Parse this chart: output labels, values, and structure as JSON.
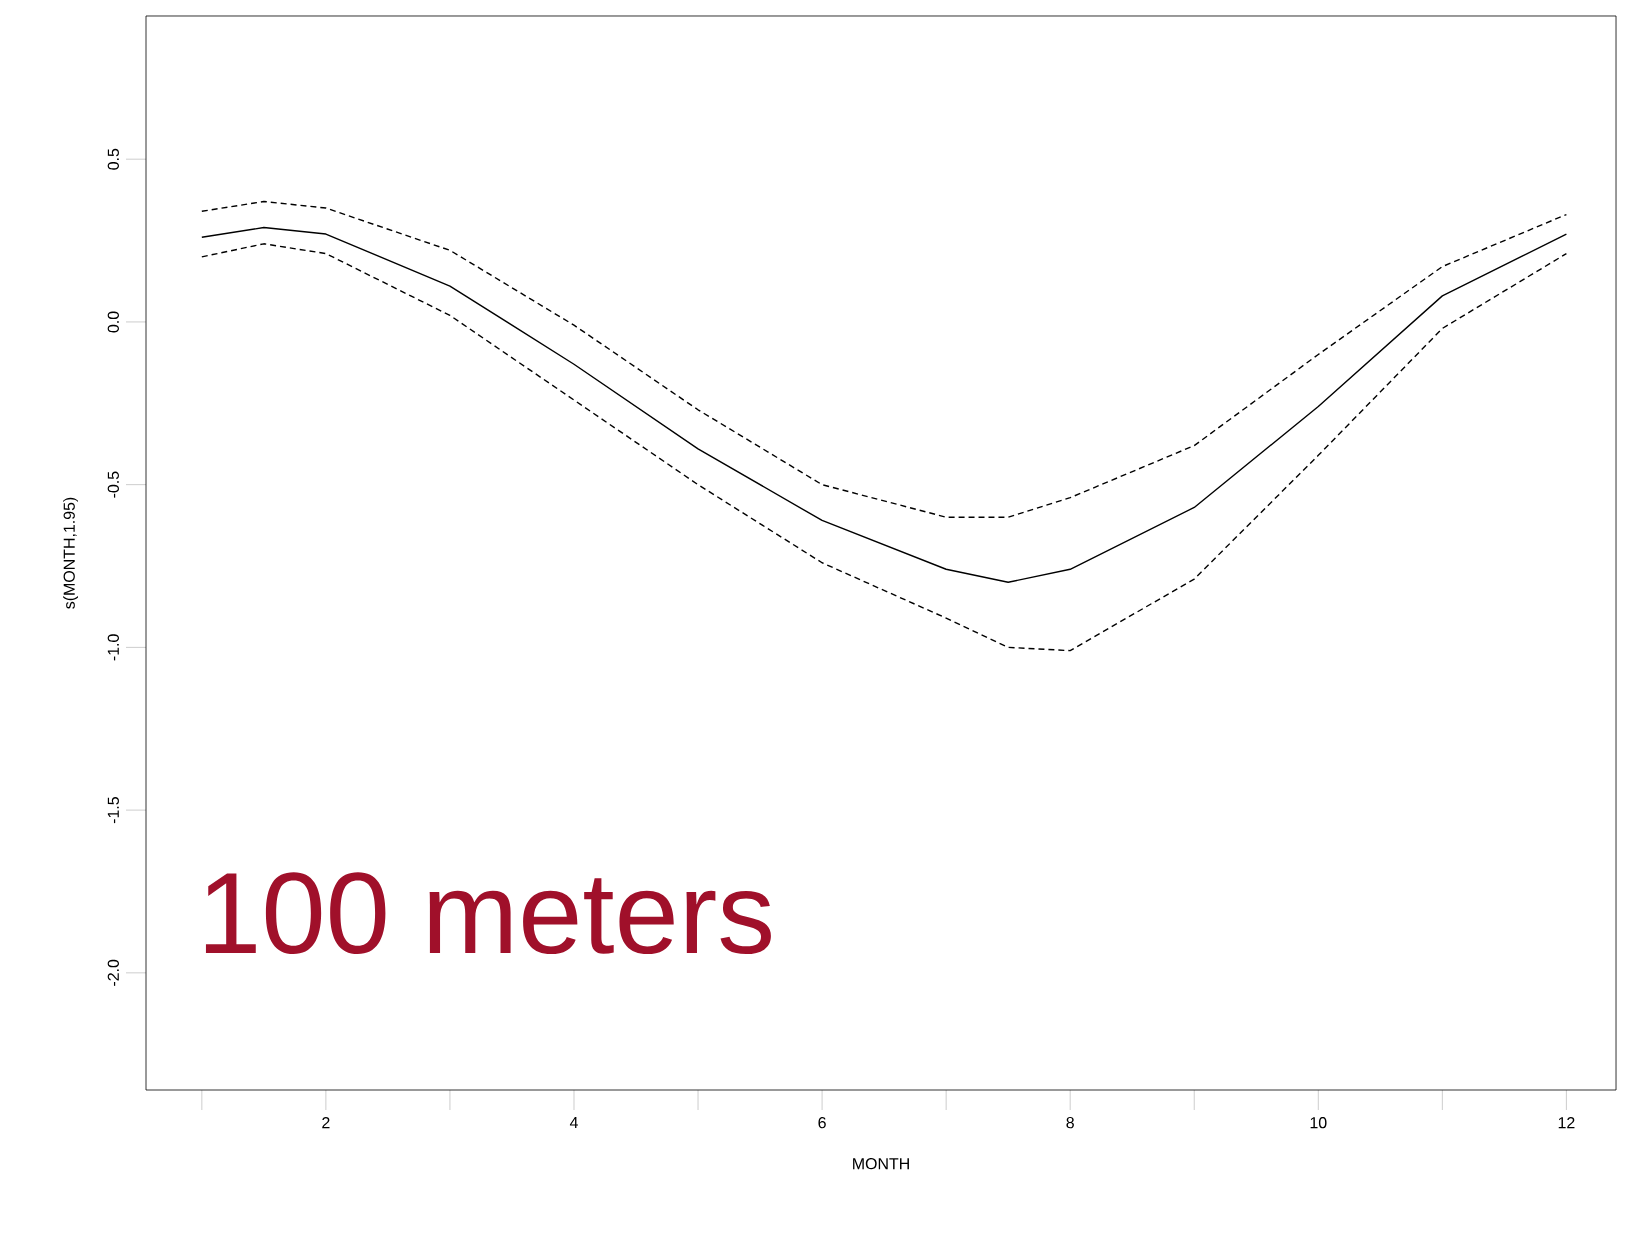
{
  "chart_data": {
    "type": "line",
    "xlabel": "MONTH",
    "ylabel": "s(MONTH,1.95)",
    "x": [
      1,
      1.5,
      2,
      3,
      4,
      5,
      6,
      7,
      7.5,
      8,
      9,
      10,
      11,
      12
    ],
    "series": [
      {
        "color": "#000000",
        "line_style": "solid",
        "values": [
          0.26,
          0.29,
          0.27,
          0.11,
          -0.13,
          -0.39,
          -0.61,
          -0.76,
          -0.8,
          -0.76,
          -0.57,
          -0.26,
          0.08,
          0.27
        ]
      },
      {
        "color": "#000000",
        "line_style": "dashed",
        "values": [
          0.34,
          0.37,
          0.35,
          0.22,
          -0.01,
          -0.27,
          -0.5,
          -0.6,
          -0.6,
          -0.54,
          -0.38,
          -0.1,
          0.17,
          0.33
        ]
      },
      {
        "color": "#000000",
        "line_style": "dashed",
        "values": [
          0.2,
          0.24,
          0.21,
          0.02,
          -0.24,
          -0.5,
          -0.74,
          -0.91,
          -1.0,
          -1.01,
          -0.79,
          -0.41,
          -0.02,
          0.21
        ]
      }
    ],
    "xlim": [
      0.55,
      12.4
    ],
    "ylim": [
      -2.36,
      0.94
    ],
    "xticks": [
      {
        "value": 1,
        "label": null
      },
      2,
      {
        "value": 3,
        "label": null
      },
      4,
      {
        "value": 5,
        "label": null
      },
      6,
      {
        "value": 7,
        "label": null
      },
      8,
      {
        "value": 9,
        "label": null
      },
      10,
      {
        "value": 11,
        "label": null
      },
      12
    ],
    "yticks": [
      {
        "value": -2.0,
        "label": "-2.0"
      },
      {
        "value": -1.5,
        "label": "-1.5"
      },
      {
        "value": -1.0,
        "label": "-1.0"
      },
      {
        "value": -0.5,
        "label": "-0.5"
      },
      {
        "value": 0.0,
        "label": "0.0"
      },
      {
        "value": 0.5,
        "label": "0.5"
      }
    ],
    "grid": false,
    "marker": "none",
    "annotations": [
      "100 meters"
    ]
  }
}
